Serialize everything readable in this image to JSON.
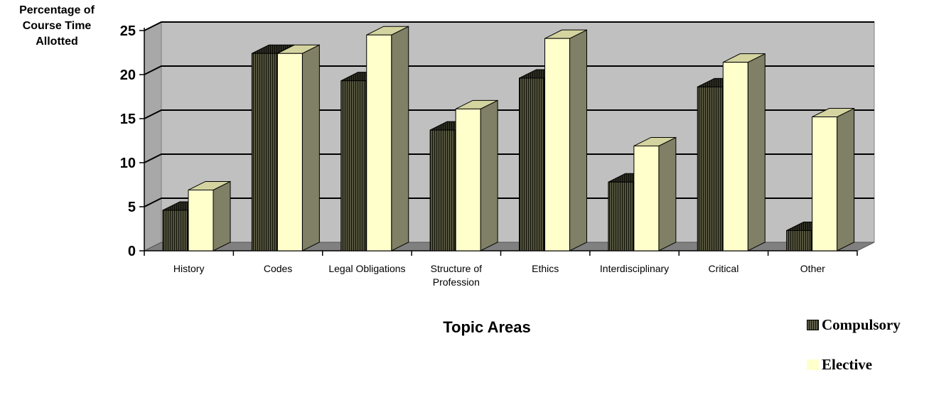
{
  "chart_data": {
    "type": "bar",
    "title": "",
    "ylabel": "Percentage of\nCourse Time\nAllotted",
    "xlabel": "Topic Areas",
    "ylim": [
      0,
      25
    ],
    "yticks": [
      0,
      5,
      10,
      15,
      20,
      25
    ],
    "grid": true,
    "legend_position": "bottom-right",
    "categories": [
      [
        "History"
      ],
      [
        "Codes"
      ],
      [
        "Legal Obligations"
      ],
      [
        "Structure of",
        "Profession"
      ],
      [
        "Ethics"
      ],
      [
        "Interdisciplinary"
      ],
      [
        "Critical"
      ],
      [
        "Other"
      ]
    ],
    "series": [
      {
        "name": "Compulsory",
        "values": [
          4.6,
          22.4,
          19.3,
          13.7,
          19.6,
          7.8,
          18.6,
          2.3
        ],
        "color": "#3a3a2e"
      },
      {
        "name": "Elective",
        "values": [
          6.9,
          22.4,
          24.5,
          16.1,
          24.1,
          11.9,
          21.4,
          15.2
        ],
        "color": "#ffffcc"
      }
    ]
  }
}
